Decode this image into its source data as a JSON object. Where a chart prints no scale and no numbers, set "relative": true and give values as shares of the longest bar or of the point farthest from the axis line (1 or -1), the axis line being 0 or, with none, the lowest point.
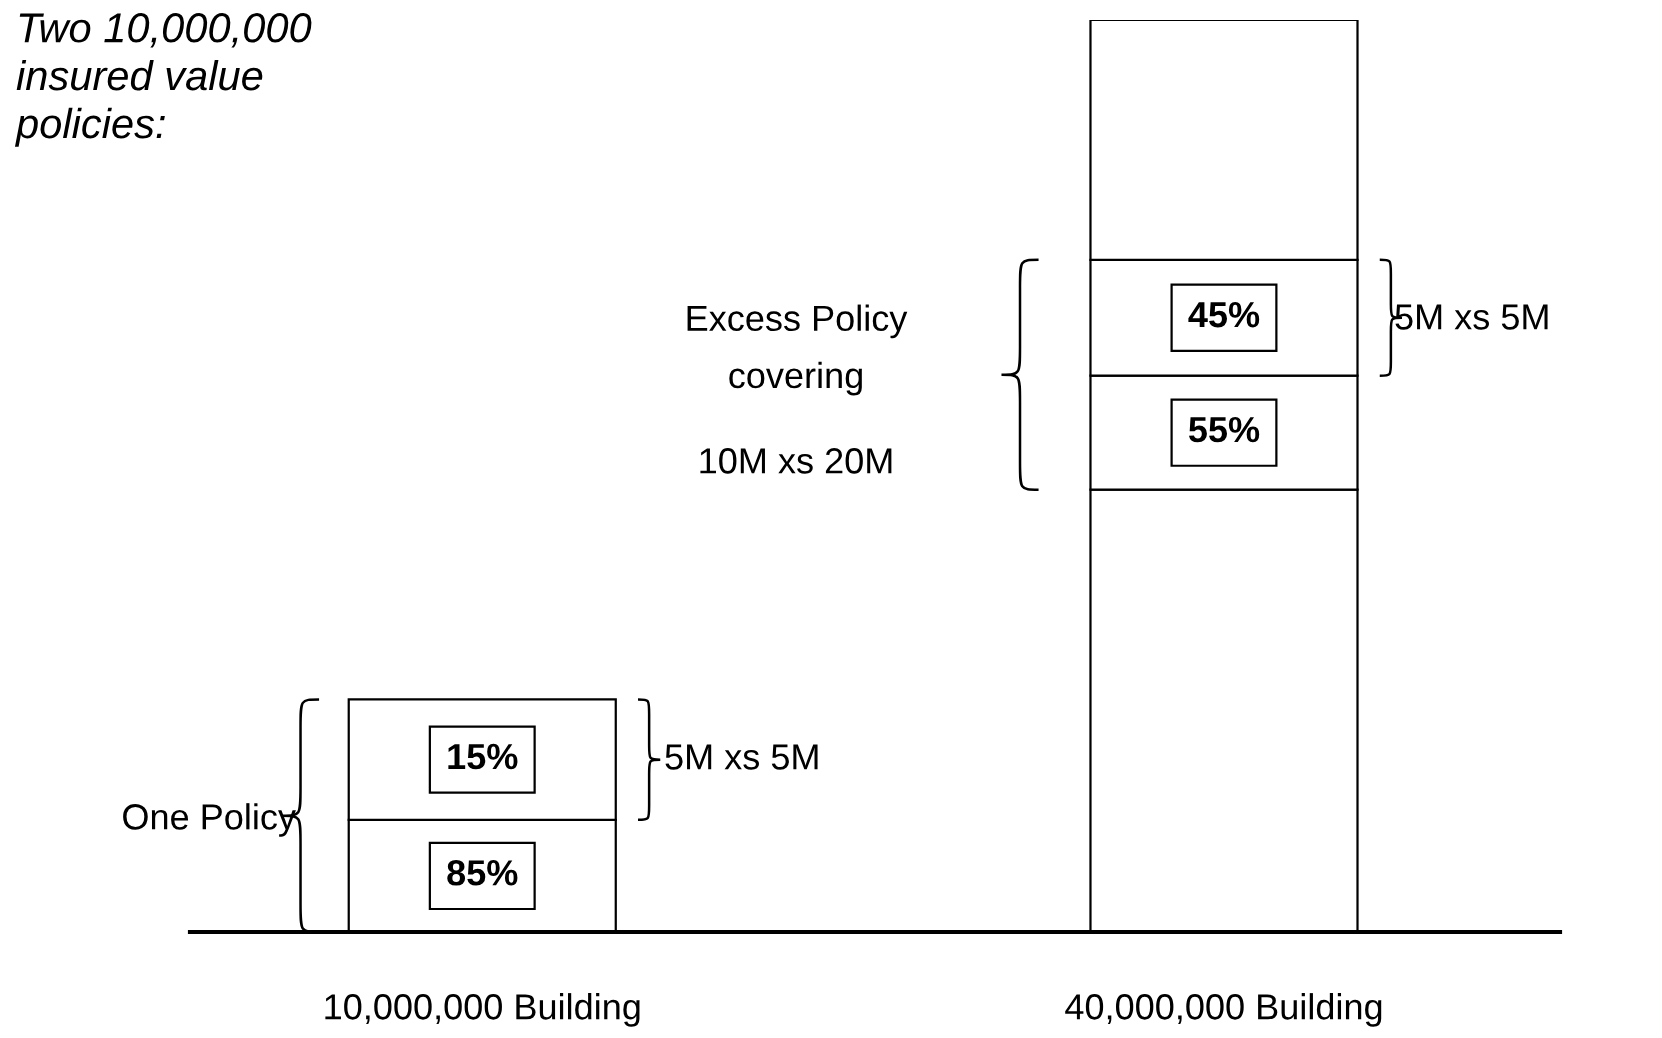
{
  "chart_data": {
    "type": "bar",
    "stacked": true,
    "relative": true,
    "title": "Two 10,000,000\ninsured value\npolicies:",
    "categories": [
      "10,000,000 Building",
      "40,000,000 Building"
    ],
    "series": [
      {
        "color": "#ffffff",
        "values": [
          0.123,
          0.485
        ]
      },
      {
        "color": "#ffffff",
        "values": [
          0.132,
          0.125
        ]
      },
      {
        "color": "#ffffff",
        "values": [
          null,
          0.127
        ]
      },
      {
        "color": "#ffffff",
        "values": [
          null,
          0.263
        ]
      }
    ],
    "annotations": [
      "One Policy",
      "5M xs 5M",
      "Excess Policy\ncovering",
      "10M xs 20M",
      "5M xs 5M",
      "85%",
      "15%",
      "55%",
      "45%"
    ],
    "grid": false,
    "legend": false
  }
}
